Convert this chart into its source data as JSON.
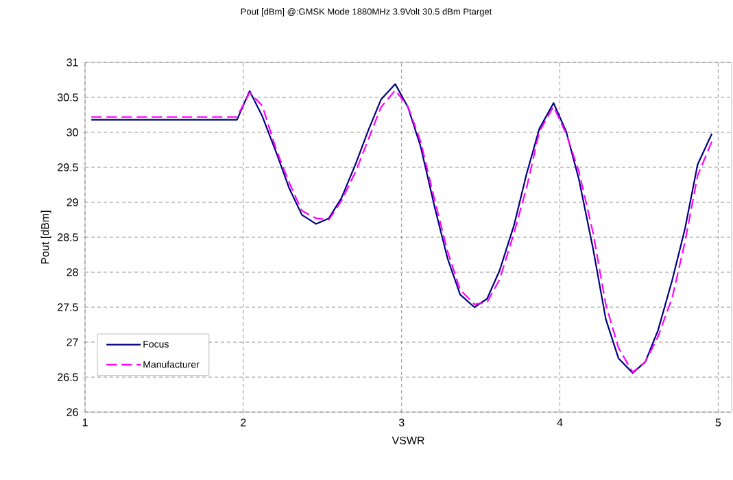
{
  "chart_data": {
    "type": "line",
    "title": "Pout [dBm] @:GMSK Mode 1880MHz 3.9Volt 30.5 dBm Ptarget",
    "xlabel": "VSWR",
    "ylabel": "Pout [dBm]",
    "x": [
      1.04,
      1.12,
      1.21,
      1.29,
      1.37,
      1.46,
      1.54,
      1.62,
      1.71,
      1.79,
      1.87,
      1.96,
      2.04,
      2.12,
      2.21,
      2.29,
      2.37,
      2.46,
      2.54,
      2.62,
      2.71,
      2.79,
      2.87,
      2.96,
      3.04,
      3.12,
      3.21,
      3.29,
      3.37,
      3.46,
      3.54,
      3.62,
      3.71,
      3.79,
      3.87,
      3.96,
      4.04,
      4.12,
      4.21,
      4.29,
      4.37,
      4.46,
      4.54,
      4.62,
      4.71,
      4.79,
      4.87,
      4.96
    ],
    "series": [
      {
        "name": "Focus",
        "color": "#000080",
        "line_style": "solid",
        "values": [
          30.18,
          30.18,
          30.18,
          30.18,
          30.18,
          30.18,
          30.18,
          30.18,
          30.18,
          30.18,
          30.18,
          30.18,
          30.59,
          30.23,
          29.7,
          29.2,
          28.82,
          28.69,
          28.77,
          29.06,
          29.55,
          30.03,
          30.47,
          30.69,
          30.36,
          29.8,
          28.92,
          28.2,
          27.68,
          27.5,
          27.62,
          28.03,
          28.67,
          29.41,
          30.05,
          30.42,
          30.01,
          29.33,
          28.33,
          27.33,
          26.77,
          26.56,
          26.72,
          27.17,
          27.89,
          28.62,
          29.54,
          29.98
        ]
      },
      {
        "name": "Manufacturer",
        "color": "#ff00ff",
        "line_style": "dashed",
        "values": [
          30.22,
          30.22,
          30.22,
          30.22,
          30.22,
          30.22,
          30.22,
          30.22,
          30.22,
          30.22,
          30.22,
          30.22,
          30.57,
          30.38,
          29.74,
          29.28,
          28.88,
          28.77,
          28.75,
          29.02,
          29.44,
          29.9,
          30.36,
          30.6,
          30.37,
          29.87,
          29.02,
          28.3,
          27.75,
          27.54,
          27.57,
          27.9,
          28.56,
          29.21,
          30.01,
          30.37,
          29.98,
          29.44,
          28.56,
          27.54,
          26.92,
          26.57,
          26.72,
          27.08,
          27.64,
          28.43,
          29.38,
          29.87
        ]
      }
    ],
    "xlim": [
      1,
      5.085
    ],
    "xticks": [
      1,
      2,
      3,
      4,
      5
    ],
    "ylim": [
      26,
      31
    ],
    "yticks": [
      26,
      26.5,
      27,
      27.5,
      28,
      28.5,
      29,
      29.5,
      30,
      30.5,
      31
    ],
    "grid": true,
    "legend": "bottom left",
    "marker": "none"
  }
}
